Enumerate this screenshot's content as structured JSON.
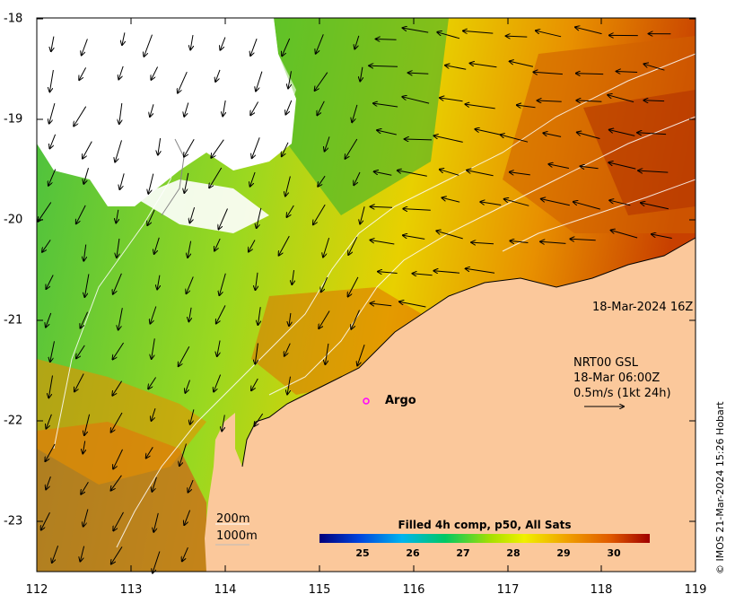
{
  "map": {
    "x_ticks": [
      "112",
      "113",
      "114",
      "115",
      "116",
      "117",
      "118",
      "119"
    ],
    "y_ticks": [
      "-18",
      "-19",
      "-20",
      "-21",
      "-22",
      "-23"
    ],
    "timestamp": "18-Mar-2024 16Z",
    "legend_line1": "NRT00 GSL",
    "legend_line2": "18-Mar 06:00Z",
    "legend_line3": "0.5m/s (1kt 24h)",
    "argo_label": "Argo",
    "depth_200": "200m",
    "depth_1000": "1000m",
    "credit": "© IMOS 21-Mar-2024 15:26 Hobart",
    "colorbar": {
      "title": "Filled 4h comp, p50, All Sats",
      "ticks": [
        "25",
        "26",
        "27",
        "28",
        "29",
        "30"
      ]
    },
    "colors": {
      "land": "#fbc89b",
      "argo_marker": "#ff00ff",
      "cloud": "#ffffff"
    }
  }
}
